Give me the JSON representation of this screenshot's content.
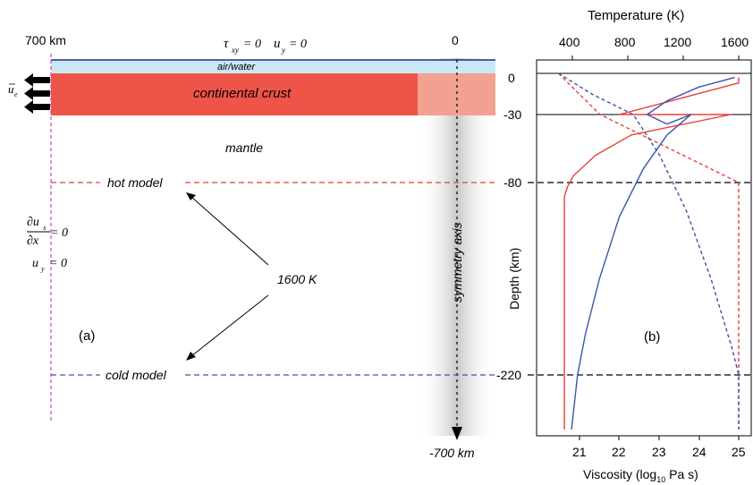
{
  "panel_a": {
    "label": "(a)",
    "left_depth_label": "700 km",
    "top_zero_label": "0",
    "bottom_label": "-700 km",
    "bc_top_tau": "τ",
    "bc_top_tau_sub": "xy",
    "bc_top_eq1": "= 0",
    "bc_top_u": "u",
    "bc_top_u_sub": "y",
    "bc_top_eq2": "= 0",
    "air_water": "air/water",
    "crust": "continental crust",
    "mantle": "mantle",
    "hot_model": "hot model",
    "cold_model": "cold model",
    "temp_1600": "1600 K",
    "symmetry_axis": "symmetry axis",
    "velocity_u": "u",
    "velocity_sub": "e",
    "left_bc_du": "∂u",
    "left_bc_du_sub": "x",
    "left_bc_dx": "∂x",
    "left_bc_eq": "= 0",
    "left_bc_u": "u",
    "left_bc_u_sub": "y",
    "left_bc_eq2": "= 0",
    "colors": {
      "air_water": "#c9e8f3",
      "crust": "#ef5448",
      "crust_light": "#f2a190",
      "hot": "#e8403a",
      "cold": "#3e55a8",
      "left_boundary": "#d24fbf"
    }
  },
  "panel_b": {
    "label": "(b)",
    "top_axis_title": "Temperature (K)",
    "top_ticks": [
      "400",
      "800",
      "1200",
      "1600"
    ],
    "bottom_axis_title_main": "Viscosity (log",
    "bottom_axis_title_sub": "10",
    "bottom_axis_title_end": " Pa s)",
    "bottom_ticks": [
      "21",
      "22",
      "23",
      "24",
      "25"
    ],
    "y_axis_title": "Depth (km)",
    "y_ticks": [
      "0",
      "-30",
      "-80",
      "-220"
    ]
  },
  "chart_data": {
    "type": "line",
    "xlabel_top": "Temperature (K)",
    "xlabel_bottom": "Viscosity (log10 Pa s)",
    "ylabel": "Depth (km)",
    "y_ticks": [
      0,
      -30,
      -80,
      -220
    ],
    "x_top_ticks": [
      400,
      800,
      1200,
      1600
    ],
    "x_bottom_ticks": [
      21,
      22,
      23,
      24,
      25
    ],
    "series": [
      {
        "quantity": "temperature",
        "line_style": "dashed",
        "color": "#e8403a",
        "points": [
          [
            300,
            0
          ],
          [
            600,
            -30
          ],
          [
            1600,
            -80
          ],
          [
            1600,
            -220
          ],
          [
            1600,
            -260
          ]
        ]
      },
      {
        "quantity": "temperature",
        "line_style": "dashed",
        "color": "#3e55a8",
        "points": [
          [
            300,
            0
          ],
          [
            540,
            -15
          ],
          [
            840,
            -30
          ],
          [
            1030,
            -60
          ],
          [
            1220,
            -100
          ],
          [
            1400,
            -150
          ],
          [
            1550,
            -200
          ],
          [
            1600,
            -220
          ],
          [
            1600,
            -260
          ]
        ]
      },
      {
        "quantity": "viscosity",
        "line_style": "solid",
        "color": "#e8403a",
        "points": [
          [
            25.0,
            -3
          ],
          [
            25.0,
            -7
          ],
          [
            22.0,
            -30
          ],
          [
            24.8,
            -30
          ],
          [
            22.3,
            -45
          ],
          [
            21.4,
            -60
          ],
          [
            20.85,
            -75
          ],
          [
            20.7,
            -83
          ],
          [
            20.62,
            -90
          ],
          [
            20.62,
            -260
          ]
        ]
      },
      {
        "quantity": "viscosity",
        "line_style": "solid",
        "color": "#3e55a8",
        "points": [
          [
            24.9,
            -3
          ],
          [
            24.0,
            -10
          ],
          [
            23.2,
            -20
          ],
          [
            22.7,
            -30
          ],
          [
            23.2,
            -37
          ],
          [
            23.8,
            -30
          ],
          [
            23.2,
            -45
          ],
          [
            22.6,
            -70
          ],
          [
            22.0,
            -105
          ],
          [
            21.5,
            -150
          ],
          [
            21.15,
            -190
          ],
          [
            20.95,
            -220
          ],
          [
            20.8,
            -260
          ]
        ]
      }
    ]
  }
}
